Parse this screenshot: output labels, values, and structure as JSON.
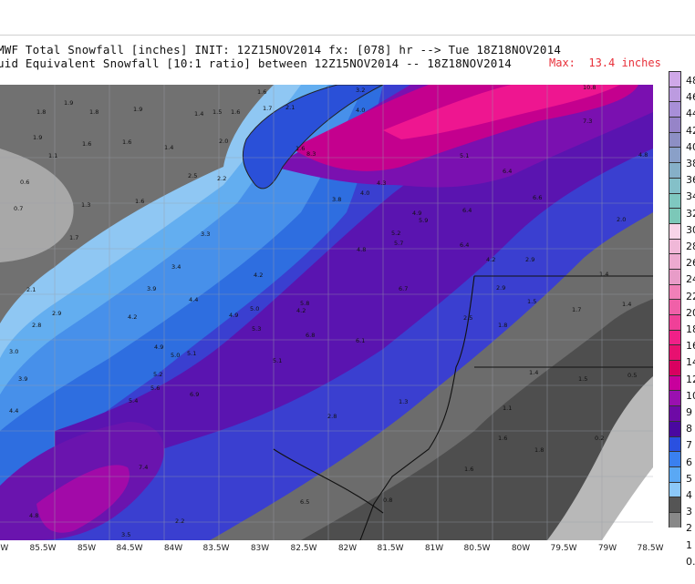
{
  "header": {
    "title_line1": "MWF Total Snowfall [inches] INIT: 12Z15NOV2014 fx: [078] hr --> Tue 18Z18NOV2014",
    "title_line2": "uid Equivalent Snowfall [10:1 ratio] between 12Z15NOV2014 -- 18Z18NOV2014",
    "max_label": "Max:  13.4 inches"
  },
  "x_axis_ticks": [
    "5W",
    "85.5W",
    "85W",
    "84.5W",
    "84W",
    "83.5W",
    "83W",
    "82.5W",
    "82W",
    "81.5W",
    "81W",
    "80.5W",
    "80W",
    "79.5W",
    "79W",
    "78.5W"
  ],
  "legend_ticks": [
    "48",
    "46",
    "44",
    "42",
    "40",
    "38",
    "36",
    "34",
    "32",
    "30",
    "28",
    "26",
    "24",
    "22",
    "20",
    "18",
    "16",
    "14",
    "12",
    "10",
    "9",
    "8",
    "7",
    "6",
    "5",
    "4",
    "3",
    "2",
    "1",
    "0."
  ],
  "legend_colors": [
    "#cfa8e8",
    "#bc9be0",
    "#a88fd8",
    "#9684c8",
    "#8d8fc4",
    "#8aa0c8",
    "#86b0c8",
    "#84c0c8",
    "#7fc8c0",
    "#7cc8b8",
    "#f8d4e8",
    "#f0b8d8",
    "#ecaad0",
    "#e89cc8",
    "#f080b8",
    "#f060a8",
    "#f04098",
    "#f02088",
    "#e81070",
    "#d80060",
    "#c8009c",
    "#9a10b0",
    "#6e0aa6",
    "#4a08a0",
    "#2a50e0",
    "#3a80f0",
    "#5aa8f4",
    "#8cc8f8",
    "#555555",
    "#888888"
  ],
  "map_labels": [
    {
      "t": "1.9"
    },
    {
      "t": "1.8"
    },
    {
      "t": "1.8"
    },
    {
      "t": "1.9"
    },
    {
      "t": "1.4"
    },
    {
      "t": "1.5"
    },
    {
      "t": "1.6"
    },
    {
      "t": "1.6"
    },
    {
      "t": "1.7"
    },
    {
      "t": "2.1"
    },
    {
      "t": "3.2"
    },
    {
      "t": "1.9"
    },
    {
      "t": "1.6"
    },
    {
      "t": "1.6"
    },
    {
      "t": "1.4"
    },
    {
      "t": "2.0"
    },
    {
      "t": "1.1"
    },
    {
      "t": "0.6"
    },
    {
      "t": "0.7"
    },
    {
      "t": "1.3"
    },
    {
      "t": "1.6"
    },
    {
      "t": "1.7"
    },
    {
      "t": "2.5"
    },
    {
      "t": "2.2"
    },
    {
      "t": "3.3"
    },
    {
      "t": "3.4"
    },
    {
      "t": "3.9"
    },
    {
      "t": "4.2"
    },
    {
      "t": "4.4"
    },
    {
      "t": "4.2"
    },
    {
      "t": "4.9"
    },
    {
      "t": "5.0"
    },
    {
      "t": "5.3"
    },
    {
      "t": "2.1"
    },
    {
      "t": "2.8"
    },
    {
      "t": "2.9"
    },
    {
      "t": "3.0"
    },
    {
      "t": "3.9"
    },
    {
      "t": "4.4"
    },
    {
      "t": "4.9"
    },
    {
      "t": "5.0"
    },
    {
      "t": "5.1"
    },
    {
      "t": "5.2"
    },
    {
      "t": "5.6"
    },
    {
      "t": "5.4"
    },
    {
      "t": "6.9"
    },
    {
      "t": "3.8"
    },
    {
      "t": "4.0"
    },
    {
      "t": "4.3"
    },
    {
      "t": "4.8"
    },
    {
      "t": "5.8"
    },
    {
      "t": "5.2"
    },
    {
      "t": "5.7"
    },
    {
      "t": "4.9"
    },
    {
      "t": "5.9"
    },
    {
      "t": "6.4"
    },
    {
      "t": "6.7"
    },
    {
      "t": "6.8"
    },
    {
      "t": "6.1"
    },
    {
      "t": "5.1"
    },
    {
      "t": "6.4"
    },
    {
      "t": "6.6"
    },
    {
      "t": "7.3"
    },
    {
      "t": "4.0"
    },
    {
      "t": "8.3"
    },
    {
      "t": "10.8"
    },
    {
      "t": "4.8"
    },
    {
      "t": "6.4"
    },
    {
      "t": "4.2"
    },
    {
      "t": "2.9"
    },
    {
      "t": "2.0"
    },
    {
      "t": "2.9"
    },
    {
      "t": "1.4"
    },
    {
      "t": "1.5"
    },
    {
      "t": "1.8"
    },
    {
      "t": "2.5"
    },
    {
      "t": "1.7"
    },
    {
      "t": "1.4"
    },
    {
      "t": "1.4"
    },
    {
      "t": "1.5"
    },
    {
      "t": "0.5"
    },
    {
      "t": "2.8"
    },
    {
      "t": "1.3"
    },
    {
      "t": "1.1"
    },
    {
      "t": "1.6"
    },
    {
      "t": "1.8"
    },
    {
      "t": "1.6"
    },
    {
      "t": "0.2"
    },
    {
      "t": "0.8"
    },
    {
      "t": "6.5"
    },
    {
      "t": "7.4"
    },
    {
      "t": "2.2"
    },
    {
      "t": "3.5"
    },
    {
      "t": "4.8"
    },
    {
      "t": "4.2"
    },
    {
      "t": "1.6"
    },
    {
      "t": "5.1"
    }
  ]
}
